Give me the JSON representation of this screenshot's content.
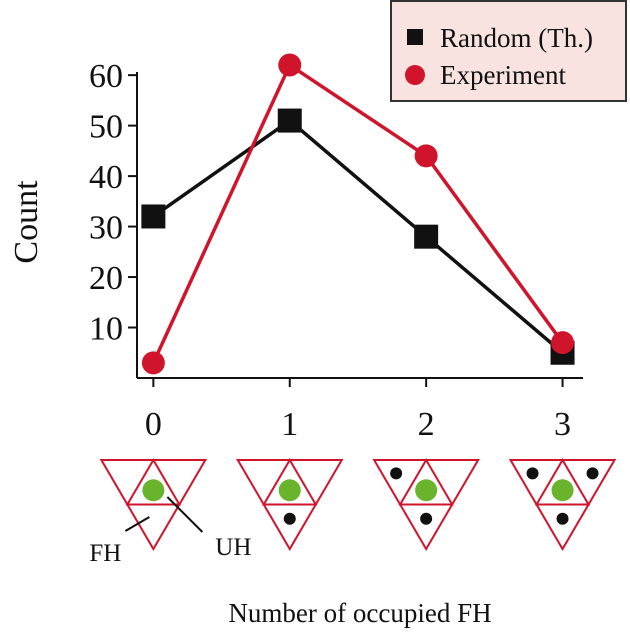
{
  "chart_data": {
    "type": "line",
    "xlabel": "Number of occupied FH",
    "ylabel": "Count",
    "x": [
      0,
      1,
      2,
      3
    ],
    "x_tick_labels": [
      "0",
      "1",
      "2",
      "3"
    ],
    "y_tick_labels": [
      "10",
      "20",
      "30",
      "40",
      "50",
      "60"
    ],
    "y_ticks": [
      10,
      20,
      30,
      40,
      50,
      60
    ],
    "xlim": [
      -0.12,
      3.15
    ],
    "ylim": [
      0,
      63
    ],
    "grid": false,
    "legend_position": "top-right",
    "series": [
      {
        "name": "Random (Th.)",
        "marker": "square",
        "color": "#111111",
        "values": [
          32,
          51,
          28,
          5
        ]
      },
      {
        "name": "Experiment",
        "marker": "circle",
        "color": "#d0142c",
        "values": [
          3,
          62,
          44,
          7
        ]
      }
    ]
  },
  "schematic": {
    "label_fh": "FH",
    "label_uh": "UH",
    "colors": {
      "outline": "#d0142c",
      "center": "#6ab42d",
      "dot": "#111111"
    },
    "occupied_counts": [
      0,
      1,
      2,
      3
    ]
  },
  "legend": {
    "background": "#f9e3e0",
    "border": "#333333"
  }
}
